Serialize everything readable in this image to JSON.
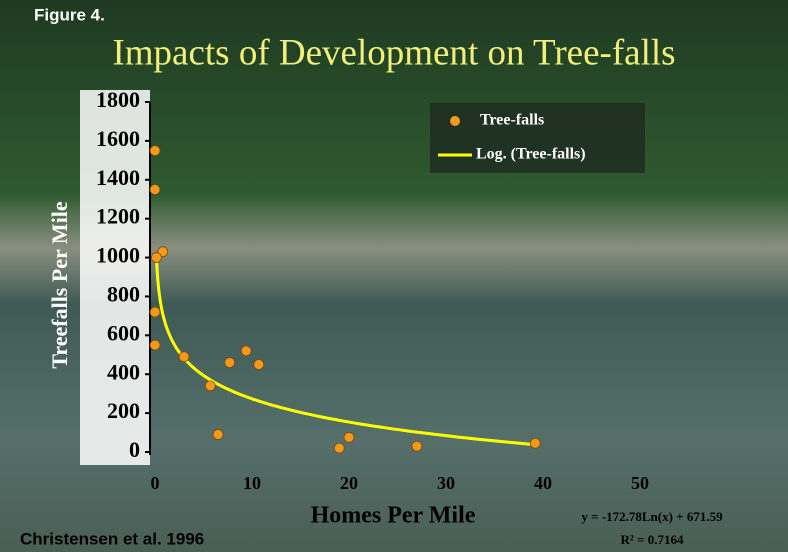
{
  "chart_data": {
    "type": "scatter",
    "figure_label": "Figure 4.",
    "title": "Impacts of Development on Tree-falls",
    "xlabel": "Homes Per Mile",
    "ylabel": "Treefalls Per Mile",
    "citation": "Christensen et al. 1996",
    "series": [
      {
        "name": "Tree-falls",
        "color": "#f39a1e",
        "x": [
          0,
          0,
          0.8,
          0.15,
          0,
          0,
          3,
          7.7,
          9.4,
          10.7,
          5.7,
          6.5,
          19,
          20,
          27,
          39.2
        ],
        "values": [
          1550,
          1350,
          1030,
          1000,
          720,
          550,
          490,
          460,
          520,
          450,
          340,
          90,
          20,
          75,
          30,
          45
        ]
      }
    ],
    "trendline": {
      "name": "Log. (Tree-falls)",
      "color": "#ffff00",
      "slope": -172.78,
      "intercept": 671.59,
      "equation": "y = -172.78Ln(x) + 671.59",
      "r_squared": 0.7164,
      "r_squared_label": "R² = 0.7164"
    },
    "xlim": [
      0,
      50
    ],
    "xticks": [
      0,
      10,
      20,
      30,
      40,
      50
    ],
    "ylim": [
      0,
      1800
    ],
    "yticks": [
      0,
      200,
      400,
      600,
      800,
      1000,
      1200,
      1400,
      1600,
      1800
    ]
  }
}
